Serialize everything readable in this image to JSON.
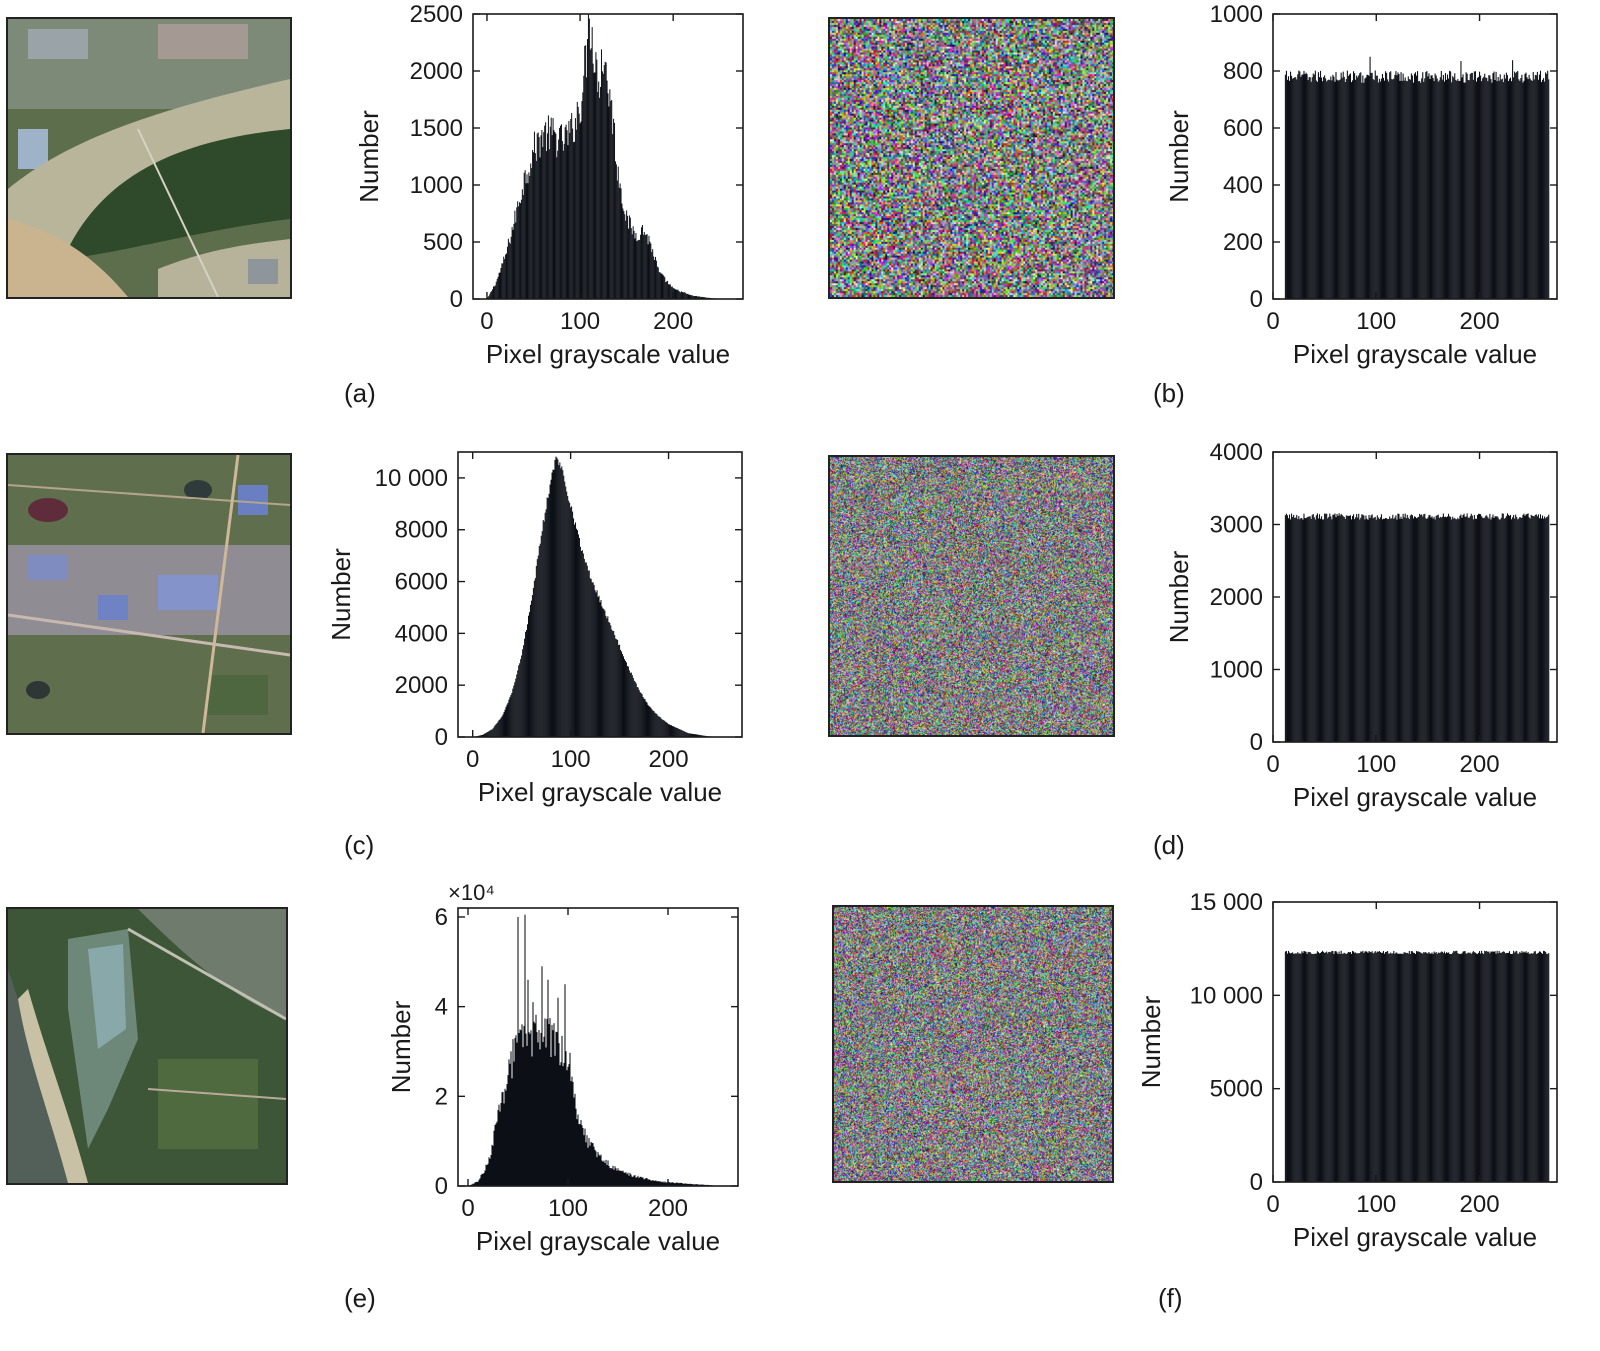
{
  "panel_labels": [
    "(a)",
    "(b)",
    "(c)",
    "(d)",
    "(e)",
    "(f)"
  ],
  "image_icons": {
    "original_1": "satellite-river-icon",
    "original_2": "satellite-town-icon",
    "original_3": "satellite-coast-icon",
    "encrypted": "noise-image-icon"
  },
  "colors": {
    "bar": "#0d1117",
    "axis": "#1a1a1a",
    "background": "#ffffff"
  },
  "chart_data": [
    {
      "id": "hist-a-original",
      "type": "bar",
      "xlabel": "Pixel grayscale value",
      "ylabel": "Number",
      "xlim": [
        -15,
        275
      ],
      "ylim": [
        0,
        2500
      ],
      "xticks": [
        0,
        100,
        200
      ],
      "xtick_labels": [
        "0",
        "100",
        "200"
      ],
      "yticks": [
        0,
        500,
        1000,
        1500,
        2000,
        2500
      ],
      "ytick_labels": [
        "0",
        "500",
        "1000",
        "1500",
        "2000",
        "2500"
      ],
      "x_range": [
        0,
        255
      ],
      "profile": [
        [
          0,
          0
        ],
        [
          3,
          40
        ],
        [
          10,
          150
        ],
        [
          20,
          380
        ],
        [
          30,
          700
        ],
        [
          40,
          1050
        ],
        [
          50,
          1300
        ],
        [
          60,
          1450
        ],
        [
          70,
          1440
        ],
        [
          80,
          1380
        ],
        [
          90,
          1450
        ],
        [
          100,
          1700
        ],
        [
          105,
          2000
        ],
        [
          110,
          2420
        ],
        [
          115,
          2200
        ],
        [
          120,
          1950
        ],
        [
          125,
          2050
        ],
        [
          130,
          1900
        ],
        [
          135,
          1600
        ],
        [
          140,
          1150
        ],
        [
          150,
          700
        ],
        [
          160,
          560
        ],
        [
          168,
          610
        ],
        [
          175,
          500
        ],
        [
          185,
          230
        ],
        [
          200,
          90
        ],
        [
          220,
          30
        ],
        [
          240,
          8
        ],
        [
          255,
          0
        ]
      ],
      "noise": 0.12,
      "spikes": [
        [
          108,
          2280
        ],
        [
          110,
          2460
        ],
        [
          112,
          2200
        ],
        [
          118,
          2100
        ],
        [
          123,
          2190
        ],
        [
          127,
          2080
        ]
      ]
    },
    {
      "id": "hist-b-encrypted",
      "type": "bar",
      "xlabel": "Pixel grayscale value",
      "ylabel": "Number",
      "xlim": [
        0,
        275
      ],
      "ylim": [
        0,
        1000
      ],
      "xticks": [
        0,
        100,
        200
      ],
      "xtick_labels": [
        "0",
        "100",
        "200"
      ],
      "yticks": [
        0,
        200,
        400,
        600,
        800,
        1000
      ],
      "ytick_labels": [
        "0",
        "200",
        "400",
        "600",
        "800",
        "1000"
      ],
      "x_range": [
        12,
        267
      ],
      "uniform_mean": 780,
      "uniform_spread": 22,
      "spikes": [
        [
          82,
          850
        ],
        [
          170,
          835
        ],
        [
          220,
          838
        ]
      ]
    },
    {
      "id": "hist-c-original",
      "type": "bar",
      "xlabel": "Pixel grayscale value",
      "ylabel": "Number",
      "xlim": [
        -15,
        275
      ],
      "ylim": [
        0,
        11000
      ],
      "xticks": [
        0,
        100,
        200
      ],
      "xtick_labels": [
        "0",
        "100",
        "200"
      ],
      "yticks": [
        0,
        2000,
        4000,
        6000,
        8000,
        10000
      ],
      "ytick_labels": [
        "0",
        "2000",
        "4000",
        "6000",
        "8000",
        "10 000"
      ],
      "x_range": [
        0,
        255
      ],
      "profile": [
        [
          0,
          0
        ],
        [
          10,
          80
        ],
        [
          20,
          300
        ],
        [
          30,
          800
        ],
        [
          40,
          1700
        ],
        [
          50,
          3200
        ],
        [
          60,
          5200
        ],
        [
          70,
          7800
        ],
        [
          80,
          10000
        ],
        [
          85,
          10700
        ],
        [
          90,
          10500
        ],
        [
          100,
          9000
        ],
        [
          110,
          7400
        ],
        [
          120,
          6200
        ],
        [
          130,
          5300
        ],
        [
          140,
          4400
        ],
        [
          150,
          3500
        ],
        [
          160,
          2600
        ],
        [
          170,
          1800
        ],
        [
          180,
          1200
        ],
        [
          190,
          800
        ],
        [
          200,
          500
        ],
        [
          220,
          150
        ],
        [
          240,
          30
        ],
        [
          255,
          0
        ]
      ],
      "noise": 0.02
    },
    {
      "id": "hist-d-encrypted",
      "type": "bar",
      "xlabel": "Pixel grayscale value",
      "ylabel": "Number",
      "xlim": [
        0,
        275
      ],
      "ylim": [
        0,
        4000
      ],
      "xticks": [
        0,
        100,
        200
      ],
      "xtick_labels": [
        "0",
        "100",
        "200"
      ],
      "yticks": [
        0,
        1000,
        2000,
        3000,
        4000
      ],
      "ytick_labels": [
        "0",
        "1000",
        "2000",
        "3000",
        "4000"
      ],
      "x_range": [
        12,
        267
      ],
      "uniform_mean": 3110,
      "uniform_spread": 45
    },
    {
      "id": "hist-e-original",
      "type": "bar",
      "xlabel": "Pixel grayscale value",
      "ylabel": "Number",
      "exponent_label": "×10⁴",
      "xlim": [
        -10,
        270
      ],
      "ylim": [
        0,
        6.2
      ],
      "xticks": [
        0,
        100,
        200
      ],
      "xtick_labels": [
        "0",
        "100",
        "200"
      ],
      "yticks": [
        0,
        2,
        4,
        6
      ],
      "ytick_labels": [
        "0",
        "2",
        "4",
        "6"
      ],
      "x_range": [
        0,
        255
      ],
      "profile": [
        [
          0,
          0
        ],
        [
          10,
          0.1
        ],
        [
          20,
          0.5
        ],
        [
          30,
          1.5
        ],
        [
          40,
          2.6
        ],
        [
          50,
          3.1
        ],
        [
          60,
          3.3
        ],
        [
          70,
          3.4
        ],
        [
          80,
          3.3
        ],
        [
          90,
          3.2
        ],
        [
          100,
          3.0
        ],
        [
          105,
          2.3
        ],
        [
          110,
          1.6
        ],
        [
          120,
          1.0
        ],
        [
          130,
          0.7
        ],
        [
          140,
          0.5
        ],
        [
          150,
          0.35
        ],
        [
          170,
          0.2
        ],
        [
          190,
          0.1
        ],
        [
          220,
          0.05
        ],
        [
          255,
          0
        ]
      ],
      "noise": 0.15,
      "spikes": [
        [
          50,
          6.0
        ],
        [
          57,
          6.05
        ],
        [
          60,
          4.6
        ],
        [
          74,
          4.9
        ],
        [
          80,
          4.6
        ],
        [
          97,
          4.5
        ],
        [
          65,
          4.1
        ],
        [
          90,
          4.2
        ]
      ]
    },
    {
      "id": "hist-f-encrypted",
      "type": "bar",
      "xlabel": "Pixel grayscale value",
      "ylabel": "Number",
      "xlim": [
        0,
        275
      ],
      "ylim": [
        0,
        15000
      ],
      "xticks": [
        0,
        100,
        200
      ],
      "xtick_labels": [
        "0",
        "100",
        "200"
      ],
      "yticks": [
        0,
        5000,
        10000,
        15000
      ],
      "ytick_labels": [
        "0",
        "5000",
        "10 000",
        "15 000"
      ],
      "x_range": [
        12,
        267
      ],
      "uniform_mean": 12300,
      "uniform_spread": 90
    }
  ]
}
